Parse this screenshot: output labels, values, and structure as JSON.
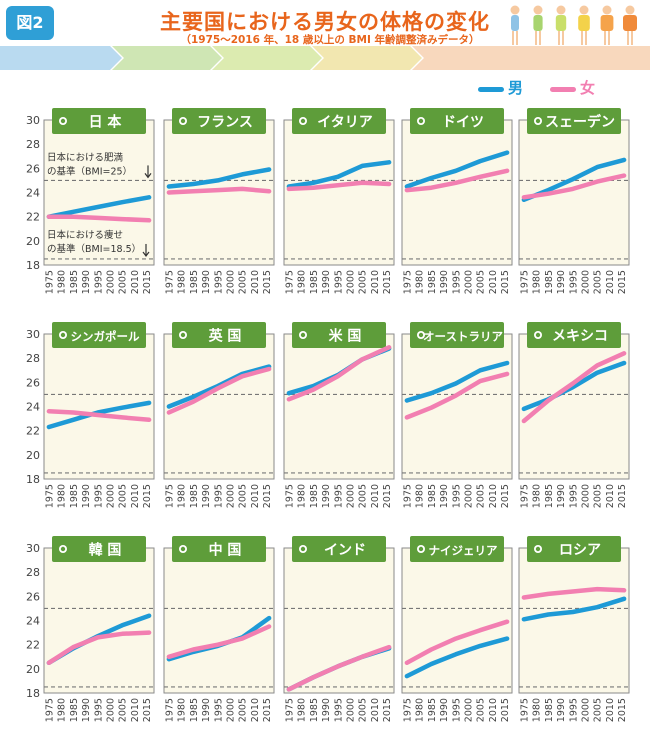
{
  "header": {
    "figure_label": "図2",
    "title": "主要国における男女の体格の変化",
    "subtitle": "（1975～2016 年、18 歳以上の BMI 年齢調整済みデータ）"
  },
  "legend": [
    {
      "label": "男",
      "color": "#1e9ad6"
    },
    {
      "label": "女",
      "color": "#f27fb1"
    }
  ],
  "annotations": {
    "obese_line1": "日本における肥満",
    "obese_line2": "の基準（BMI=25）",
    "thin_line1": "日本における痩せ",
    "thin_line2": "の基準（BMI=18.5）"
  },
  "chart_data": [
    {
      "type": "line",
      "title": "日 本",
      "x": [
        1975,
        2016
      ],
      "y_ticks": [
        18,
        20,
        22,
        24,
        26,
        28,
        30
      ],
      "x_ticks": [
        1975,
        1980,
        1985,
        1990,
        1995,
        2000,
        2005,
        2010,
        2015
      ],
      "ylim": [
        18,
        30
      ],
      "reference_lines": [
        25,
        18.5
      ],
      "series": [
        {
          "name": "男",
          "x": [
            1975,
            1985,
            1995,
            2005,
            2016
          ],
          "values": [
            22.0,
            22.4,
            22.8,
            23.2,
            23.6
          ]
        },
        {
          "name": "女",
          "x": [
            1975,
            1985,
            1995,
            2005,
            2016
          ],
          "values": [
            22.0,
            22.0,
            21.9,
            21.8,
            21.7
          ]
        }
      ]
    },
    {
      "type": "line",
      "title": "フランス",
      "x": [
        1975,
        2016
      ],
      "y_ticks": [
        18,
        20,
        22,
        24,
        26,
        28,
        30
      ],
      "x_ticks": [
        1975,
        1980,
        1985,
        1990,
        1995,
        2000,
        2005,
        2010,
        2015
      ],
      "ylim": [
        18,
        30
      ],
      "reference_lines": [
        25,
        18.5
      ],
      "series": [
        {
          "name": "男",
          "x": [
            1975,
            1985,
            1995,
            2005,
            2016
          ],
          "values": [
            24.5,
            24.7,
            25.0,
            25.5,
            25.9
          ]
        },
        {
          "name": "女",
          "x": [
            1975,
            1985,
            1995,
            2005,
            2016
          ],
          "values": [
            24.0,
            24.1,
            24.2,
            24.3,
            24.1
          ]
        }
      ]
    },
    {
      "type": "line",
      "title": "イタリア",
      "x": [
        1975,
        2016
      ],
      "y_ticks": [
        18,
        20,
        22,
        24,
        26,
        28,
        30
      ],
      "x_ticks": [
        1975,
        1980,
        1985,
        1990,
        1995,
        2000,
        2005,
        2010,
        2015
      ],
      "ylim": [
        18,
        30
      ],
      "reference_lines": [
        25,
        18.5
      ],
      "series": [
        {
          "name": "男",
          "x": [
            1975,
            1985,
            1995,
            2005,
            2016
          ],
          "values": [
            24.5,
            24.8,
            25.3,
            26.2,
            26.5
          ]
        },
        {
          "name": "女",
          "x": [
            1975,
            1985,
            1995,
            2005,
            2016
          ],
          "values": [
            24.3,
            24.4,
            24.6,
            24.8,
            24.7
          ]
        }
      ]
    },
    {
      "type": "line",
      "title": "ドイツ",
      "x": [
        1975,
        2016
      ],
      "y_ticks": [
        18,
        20,
        22,
        24,
        26,
        28,
        30
      ],
      "x_ticks": [
        1975,
        1980,
        1985,
        1990,
        1995,
        2000,
        2005,
        2010,
        2015
      ],
      "ylim": [
        18,
        30
      ],
      "reference_lines": [
        25,
        18.5
      ],
      "series": [
        {
          "name": "男",
          "x": [
            1975,
            1985,
            1995,
            2005,
            2016
          ],
          "values": [
            24.5,
            25.2,
            25.8,
            26.6,
            27.3
          ]
        },
        {
          "name": "女",
          "x": [
            1975,
            1985,
            1995,
            2005,
            2016
          ],
          "values": [
            24.2,
            24.4,
            24.8,
            25.3,
            25.8
          ]
        }
      ]
    },
    {
      "type": "line",
      "title": "スェーデン",
      "x": [
        1975,
        2016
      ],
      "y_ticks": [
        18,
        20,
        22,
        24,
        26,
        28,
        30
      ],
      "x_ticks": [
        1975,
        1980,
        1985,
        1990,
        1995,
        2000,
        2005,
        2010,
        2015
      ],
      "ylim": [
        18,
        30
      ],
      "reference_lines": [
        25,
        18.5
      ],
      "series": [
        {
          "name": "男",
          "x": [
            1975,
            1985,
            1995,
            2005,
            2016
          ],
          "values": [
            23.4,
            24.2,
            25.1,
            26.1,
            26.7
          ]
        },
        {
          "name": "女",
          "x": [
            1975,
            1985,
            1995,
            2005,
            2016
          ],
          "values": [
            23.6,
            23.9,
            24.3,
            24.9,
            25.4
          ]
        }
      ]
    },
    {
      "type": "line",
      "title": "シンガポール",
      "x": [
        1975,
        2016
      ],
      "y_ticks": [
        18,
        20,
        22,
        24,
        26,
        28,
        30
      ],
      "x_ticks": [
        1975,
        1980,
        1985,
        1990,
        1995,
        2000,
        2005,
        2010,
        2015
      ],
      "ylim": [
        18,
        30
      ],
      "reference_lines": [
        25,
        18.5
      ],
      "series": [
        {
          "name": "男",
          "x": [
            1975,
            1985,
            1995,
            2005,
            2016
          ],
          "values": [
            22.3,
            22.9,
            23.5,
            23.9,
            24.3
          ]
        },
        {
          "name": "女",
          "x": [
            1975,
            1985,
            1995,
            2005,
            2016
          ],
          "values": [
            23.6,
            23.5,
            23.3,
            23.1,
            22.9
          ]
        }
      ]
    },
    {
      "type": "line",
      "title": "英 国",
      "x": [
        1975,
        2016
      ],
      "y_ticks": [
        18,
        20,
        22,
        24,
        26,
        28,
        30
      ],
      "x_ticks": [
        1975,
        1980,
        1985,
        1990,
        1995,
        2000,
        2005,
        2010,
        2015
      ],
      "ylim": [
        18,
        30
      ],
      "reference_lines": [
        25,
        18.5
      ],
      "series": [
        {
          "name": "男",
          "x": [
            1975,
            1985,
            1995,
            2005,
            2016
          ],
          "values": [
            24.0,
            24.8,
            25.7,
            26.7,
            27.3
          ]
        },
        {
          "name": "女",
          "x": [
            1975,
            1985,
            1995,
            2005,
            2016
          ],
          "values": [
            23.5,
            24.4,
            25.5,
            26.5,
            27.1
          ]
        }
      ]
    },
    {
      "type": "line",
      "title": "米 国",
      "x": [
        1975,
        2016
      ],
      "y_ticks": [
        18,
        20,
        22,
        24,
        26,
        28,
        30
      ],
      "x_ticks": [
        1975,
        1980,
        1985,
        1990,
        1995,
        2000,
        2005,
        2010,
        2015
      ],
      "ylim": [
        18,
        30
      ],
      "reference_lines": [
        25,
        18.5
      ],
      "series": [
        {
          "name": "男",
          "x": [
            1975,
            1985,
            1995,
            2005,
            2016
          ],
          "values": [
            25.1,
            25.7,
            26.6,
            27.9,
            28.8
          ]
        },
        {
          "name": "女",
          "x": [
            1975,
            1985,
            1995,
            2005,
            2016
          ],
          "values": [
            24.6,
            25.4,
            26.5,
            27.9,
            28.9
          ]
        }
      ]
    },
    {
      "type": "line",
      "title": "オーストラリア",
      "x": [
        1975,
        2016
      ],
      "y_ticks": [
        18,
        20,
        22,
        24,
        26,
        28,
        30
      ],
      "x_ticks": [
        1975,
        1980,
        1985,
        1990,
        1995,
        2000,
        2005,
        2010,
        2015
      ],
      "ylim": [
        18,
        30
      ],
      "reference_lines": [
        25,
        18.5
      ],
      "series": [
        {
          "name": "男",
          "x": [
            1975,
            1985,
            1995,
            2005,
            2016
          ],
          "values": [
            24.5,
            25.1,
            25.9,
            27.0,
            27.6
          ]
        },
        {
          "name": "女",
          "x": [
            1975,
            1985,
            1995,
            2005,
            2016
          ],
          "values": [
            23.1,
            23.9,
            24.9,
            26.1,
            26.7
          ]
        }
      ]
    },
    {
      "type": "line",
      "title": "メキシコ",
      "x": [
        1975,
        2016
      ],
      "y_ticks": [
        18,
        20,
        22,
        24,
        26,
        28,
        30
      ],
      "x_ticks": [
        1975,
        1980,
        1985,
        1990,
        1995,
        2000,
        2005,
        2010,
        2015
      ],
      "ylim": [
        18,
        30
      ],
      "reference_lines": [
        25,
        18.5
      ],
      "series": [
        {
          "name": "男",
          "x": [
            1975,
            1985,
            1995,
            2005,
            2016
          ],
          "values": [
            23.8,
            24.6,
            25.6,
            26.8,
            27.6
          ]
        },
        {
          "name": "女",
          "x": [
            1975,
            1985,
            1995,
            2005,
            2016
          ],
          "values": [
            22.8,
            24.5,
            25.9,
            27.4,
            28.4
          ]
        }
      ]
    },
    {
      "type": "line",
      "title": "韓 国",
      "x": [
        1975,
        2016
      ],
      "y_ticks": [
        18,
        20,
        22,
        24,
        26,
        28,
        30
      ],
      "x_ticks": [
        1975,
        1980,
        1985,
        1990,
        1995,
        2000,
        2005,
        2010,
        2015
      ],
      "ylim": [
        18,
        30
      ],
      "reference_lines": [
        25,
        18.5
      ],
      "series": [
        {
          "name": "男",
          "x": [
            1975,
            1985,
            1995,
            2005,
            2016
          ],
          "values": [
            20.5,
            21.7,
            22.7,
            23.6,
            24.4
          ]
        },
        {
          "name": "女",
          "x": [
            1975,
            1985,
            1995,
            2005,
            2016
          ],
          "values": [
            20.5,
            21.8,
            22.6,
            22.9,
            23.0
          ]
        }
      ]
    },
    {
      "type": "line",
      "title": "中 国",
      "x": [
        1975,
        2016
      ],
      "y_ticks": [
        18,
        20,
        22,
        24,
        26,
        28,
        30
      ],
      "x_ticks": [
        1975,
        1980,
        1985,
        1990,
        1995,
        2000,
        2005,
        2010,
        2015
      ],
      "ylim": [
        18,
        30
      ],
      "reference_lines": [
        25,
        18.5
      ],
      "series": [
        {
          "name": "男",
          "x": [
            1975,
            1985,
            1995,
            2005,
            2016
          ],
          "values": [
            20.8,
            21.4,
            21.9,
            22.6,
            24.2
          ]
        },
        {
          "name": "女",
          "x": [
            1975,
            1985,
            1995,
            2005,
            2016
          ],
          "values": [
            21.0,
            21.6,
            22.0,
            22.5,
            23.5
          ]
        }
      ]
    },
    {
      "type": "line",
      "title": "インド",
      "x": [
        1975,
        2016
      ],
      "y_ticks": [
        18,
        20,
        22,
        24,
        26,
        28,
        30
      ],
      "x_ticks": [
        1975,
        1980,
        1985,
        1990,
        1995,
        2000,
        2005,
        2010,
        2015
      ],
      "ylim": [
        18,
        30
      ],
      "reference_lines": [
        25,
        18.5
      ],
      "series": [
        {
          "name": "男",
          "x": [
            1975,
            1985,
            1995,
            2005,
            2016
          ],
          "values": [
            18.3,
            19.3,
            20.2,
            21.0,
            21.7
          ]
        },
        {
          "name": "女",
          "x": [
            1975,
            1985,
            1995,
            2005,
            2016
          ],
          "values": [
            18.3,
            19.3,
            20.2,
            21.0,
            21.8
          ]
        }
      ]
    },
    {
      "type": "line",
      "title": "ナイジェリア",
      "x": [
        1975,
        2016
      ],
      "y_ticks": [
        18,
        20,
        22,
        24,
        26,
        28,
        30
      ],
      "x_ticks": [
        1975,
        1980,
        1985,
        1990,
        1995,
        2000,
        2005,
        2010,
        2015
      ],
      "ylim": [
        18,
        30
      ],
      "reference_lines": [
        25,
        18.5
      ],
      "series": [
        {
          "name": "男",
          "x": [
            1975,
            1985,
            1995,
            2005,
            2016
          ],
          "values": [
            19.4,
            20.4,
            21.2,
            21.9,
            22.5
          ]
        },
        {
          "name": "女",
          "x": [
            1975,
            1985,
            1995,
            2005,
            2016
          ],
          "values": [
            20.5,
            21.6,
            22.5,
            23.2,
            23.9
          ]
        }
      ]
    },
    {
      "type": "line",
      "title": "ロシア",
      "x": [
        1975,
        2016
      ],
      "y_ticks": [
        18,
        20,
        22,
        24,
        26,
        28,
        30
      ],
      "x_ticks": [
        1975,
        1980,
        1985,
        1990,
        1995,
        2000,
        2005,
        2010,
        2015
      ],
      "ylim": [
        18,
        30
      ],
      "reference_lines": [
        25,
        18.5
      ],
      "series": [
        {
          "name": "男",
          "x": [
            1975,
            1985,
            1995,
            2005,
            2016
          ],
          "values": [
            24.1,
            24.5,
            24.7,
            25.1,
            25.8
          ]
        },
        {
          "name": "女",
          "x": [
            1975,
            1985,
            1995,
            2005,
            2016
          ],
          "values": [
            25.9,
            26.2,
            26.4,
            26.6,
            26.5
          ]
        }
      ]
    }
  ]
}
